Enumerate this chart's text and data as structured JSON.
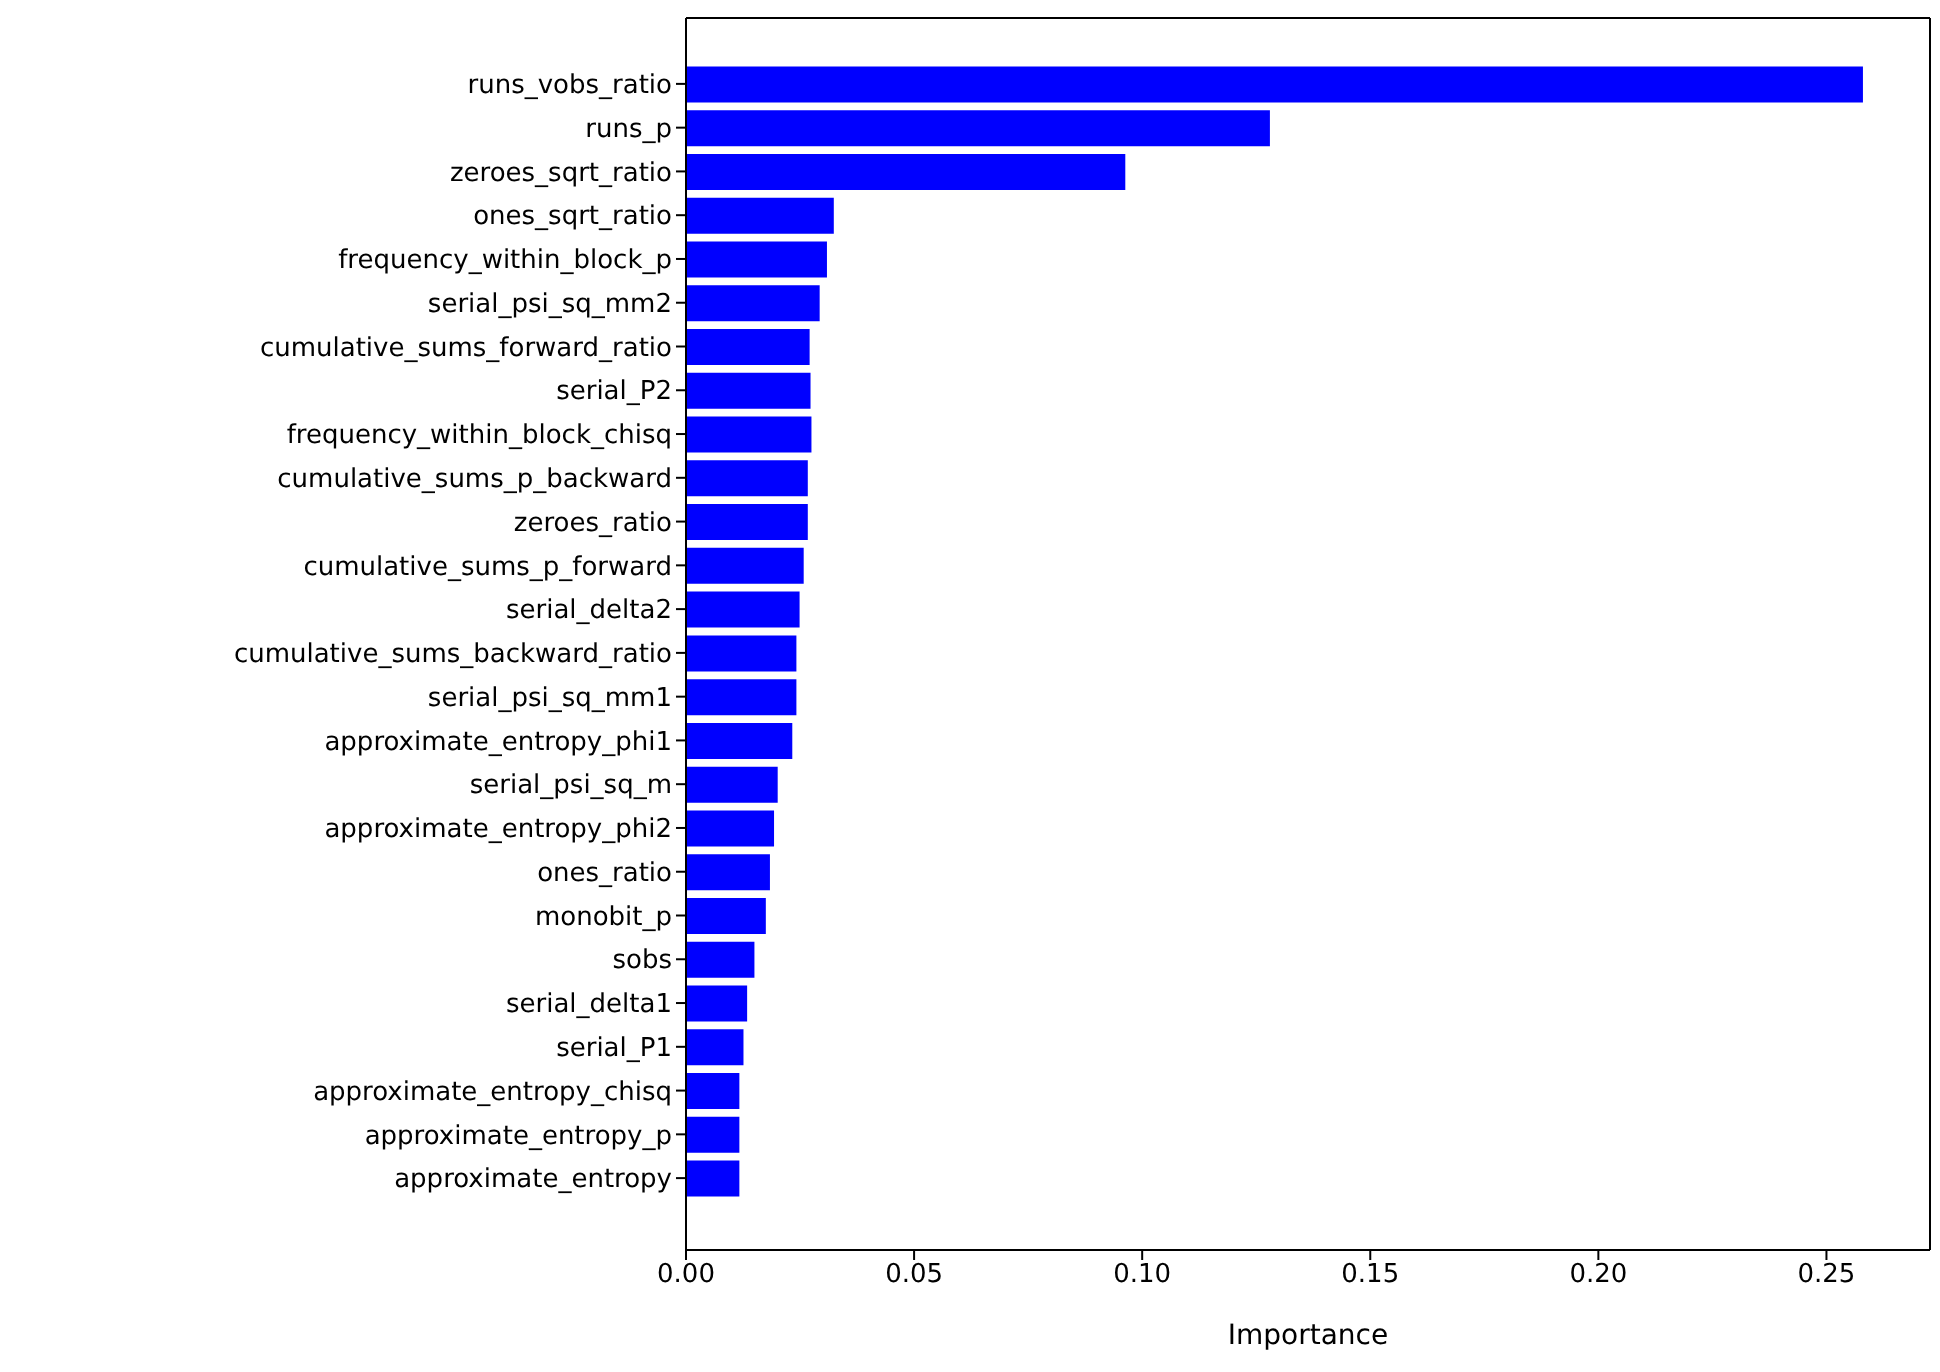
{
  "chart_data": {
    "type": "bar",
    "orientation": "horizontal",
    "xlabel": "Importance",
    "categories": [
      "runs_vobs_ratio",
      "runs_p",
      "zeroes_sqrt_ratio",
      "ones_sqrt_ratio",
      "frequency_within_block_p",
      "serial_psi_sq_mm2",
      "cumulative_sums_forward_ratio",
      "serial_P2",
      "frequency_within_block_chisq",
      "cumulative_sums_p_backward",
      "zeroes_ratio",
      "cumulative_sums_p_forward",
      "serial_delta2",
      "cumulative_sums_backward_ratio",
      "serial_psi_sq_mm1",
      "approximate_entropy_phi1",
      "serial_psi_sq_m",
      "approximate_entropy_phi2",
      "ones_ratio",
      "monobit_p",
      "sobs",
      "serial_delta1",
      "serial_P1",
      "approximate_entropy_chisq",
      "approximate_entropy_p",
      "approximate_entropy"
    ],
    "values": [
      0.258,
      0.128,
      0.0963,
      0.0324,
      0.0309,
      0.0293,
      0.0271,
      0.0273,
      0.0275,
      0.0267,
      0.0267,
      0.0258,
      0.0249,
      0.0242,
      0.0242,
      0.0233,
      0.0201,
      0.0193,
      0.0184,
      0.0175,
      0.015,
      0.0134,
      0.0126,
      0.0117,
      0.0117,
      0.0117
    ],
    "color": "#0000ff",
    "xlim": [
      0,
      0.2727
    ],
    "xticks": [
      {
        "value": 0,
        "label": "0.00"
      },
      {
        "value": 0.05,
        "label": "0.05"
      },
      {
        "value": 0.1,
        "label": "0.10"
      },
      {
        "value": 0.15,
        "label": "0.15"
      },
      {
        "value": 0.2,
        "label": "0.20"
      },
      {
        "value": 0.25,
        "label": "0.25"
      }
    ],
    "grid": false,
    "legend": false
  }
}
